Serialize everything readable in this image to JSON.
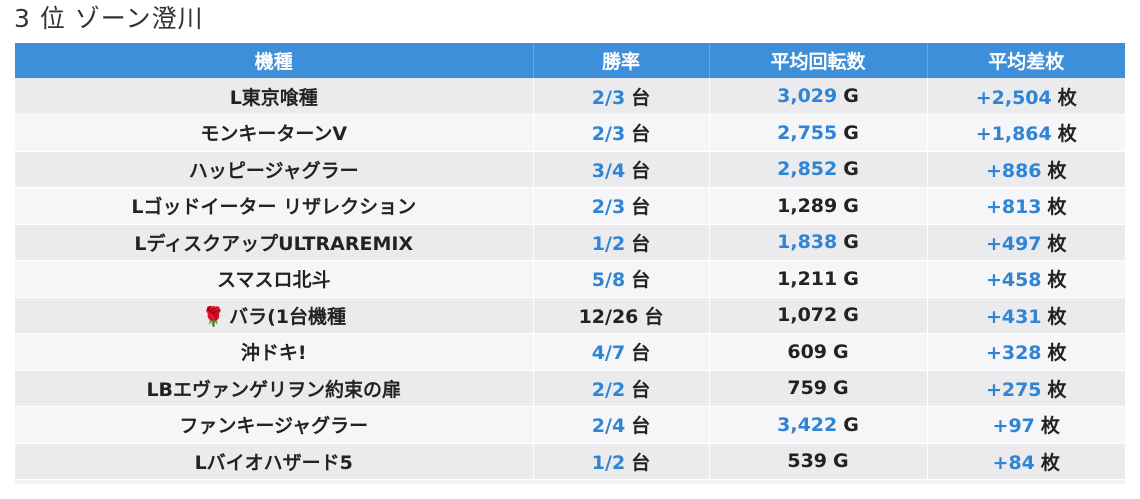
{
  "title": "3 位 ゾーン澄川",
  "table": {
    "headers": [
      "機種",
      "勝率",
      "平均回転数",
      "平均差枚"
    ],
    "units": {
      "win": "台",
      "spin": "G",
      "diff": "枚"
    },
    "rows": [
      {
        "name": "L東京喰種",
        "win": "2/3",
        "win_hl": true,
        "spin": "3,029",
        "spin_hl": true,
        "diff": "+2,504",
        "icon": ""
      },
      {
        "name": "モンキーターンV",
        "win": "2/3",
        "win_hl": true,
        "spin": "2,755",
        "spin_hl": true,
        "diff": "+1,864",
        "icon": ""
      },
      {
        "name": "ハッピージャグラー",
        "win": "3/4",
        "win_hl": true,
        "spin": "2,852",
        "spin_hl": true,
        "diff": "+886",
        "icon": ""
      },
      {
        "name": "Lゴッドイーター リザレクション",
        "win": "2/3",
        "win_hl": true,
        "spin": "1,289",
        "spin_hl": false,
        "diff": "+813",
        "icon": ""
      },
      {
        "name": "LディスクアップULTRAREMIX",
        "win": "1/2",
        "win_hl": true,
        "spin": "1,838",
        "spin_hl": true,
        "diff": "+497",
        "icon": ""
      },
      {
        "name": "スマスロ北斗",
        "win": "5/8",
        "win_hl": true,
        "spin": "1,211",
        "spin_hl": false,
        "diff": "+458",
        "icon": ""
      },
      {
        "name": "バラ(1台機種",
        "win": "12/26",
        "win_hl": false,
        "spin": "1,072",
        "spin_hl": false,
        "diff": "+431",
        "icon": "rose-icon"
      },
      {
        "name": "沖ドキ!",
        "win": "4/7",
        "win_hl": true,
        "spin": "609",
        "spin_hl": false,
        "diff": "+328",
        "icon": ""
      },
      {
        "name": "LBエヴァンゲリヲン約束の扉",
        "win": "2/2",
        "win_hl": true,
        "spin": "759",
        "spin_hl": false,
        "diff": "+275",
        "icon": ""
      },
      {
        "name": "ファンキージャグラー",
        "win": "2/4",
        "win_hl": true,
        "spin": "3,422",
        "spin_hl": true,
        "diff": "+97",
        "icon": ""
      },
      {
        "name": "Lバイオハザード5",
        "win": "1/2",
        "win_hl": true,
        "spin": "539",
        "spin_hl": false,
        "diff": "+84",
        "icon": ""
      }
    ]
  },
  "colors": {
    "header_bg": "#3d8fd9",
    "highlight": "#2f84d6",
    "row_odd": "#ebebee",
    "row_even": "#f6f6f8"
  }
}
